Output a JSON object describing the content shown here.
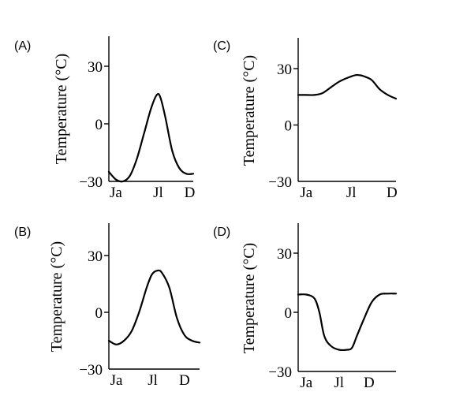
{
  "chart_data": [
    {
      "panel": "(A)",
      "type": "line",
      "xlabel": "",
      "ylabel": "Temperature (°C)",
      "ylim": [
        -30,
        45
      ],
      "xlim": [
        0,
        12
      ],
      "x_ticks": [
        1,
        7,
        11.5
      ],
      "x_tick_labels": [
        "Ja",
        "Jl",
        "D"
      ],
      "y_ticks": [
        30,
        0,
        -30
      ],
      "y_tick_labels": [
        "30",
        "0",
        "−30"
      ],
      "series": [
        {
          "x": [
            0,
            1,
            2,
            3,
            4,
            5,
            6,
            6.8,
            7.3,
            8,
            9,
            10,
            11,
            12
          ],
          "y": [
            -25,
            -29,
            -30,
            -27,
            -18,
            -5,
            8,
            15,
            14,
            4,
            -14,
            -23,
            -26,
            -26
          ]
        }
      ]
    },
    {
      "panel": "(C)",
      "type": "line",
      "xlabel": "",
      "ylabel": "Temperature (°C)",
      "ylim": [
        -30,
        45
      ],
      "xlim": [
        0,
        12
      ],
      "x_ticks": [
        1,
        6.5,
        11.5
      ],
      "x_tick_labels": [
        "Ja",
        "Jl",
        "D"
      ],
      "y_ticks": [
        30,
        0,
        -30
      ],
      "y_tick_labels": [
        "30",
        "0",
        "−30"
      ],
      "series": [
        {
          "x": [
            0,
            1,
            2,
            3,
            4,
            5,
            6,
            7,
            7.5,
            8,
            9,
            10,
            11,
            12
          ],
          "y": [
            16,
            16,
            16,
            17,
            20,
            23,
            25,
            26.5,
            26.5,
            26,
            24,
            19,
            16,
            14
          ]
        }
      ]
    },
    {
      "panel": "(B)",
      "type": "line",
      "xlabel": "",
      "ylabel": "Temperature (°C)",
      "ylim": [
        -30,
        45
      ],
      "xlim": [
        0,
        12
      ],
      "x_ticks": [
        1,
        5.8,
        10
      ],
      "x_tick_labels": [
        "Ja",
        "Jl",
        "D"
      ],
      "y_ticks": [
        30,
        0,
        -30
      ],
      "y_tick_labels": [
        "30",
        "0",
        "−30"
      ],
      "series": [
        {
          "x": [
            0,
            1,
            2,
            3,
            4,
            5,
            5.7,
            6.4,
            7,
            8,
            9,
            10,
            11,
            12
          ],
          "y": [
            -15,
            -17,
            -15,
            -10,
            0,
            13,
            20,
            22,
            21,
            13,
            -3,
            -12,
            -15,
            -16
          ]
        }
      ]
    },
    {
      "panel": "(D)",
      "type": "line",
      "xlabel": "",
      "ylabel": "Temperature (°C)",
      "ylim": [
        -30,
        45
      ],
      "xlim": [
        0,
        12
      ],
      "x_ticks": [
        1,
        5,
        8.7
      ],
      "x_tick_labels": [
        "Ja",
        "Jl",
        "D"
      ],
      "y_ticks": [
        30,
        0,
        -30
      ],
      "y_tick_labels": [
        "30",
        "0",
        "−30"
      ],
      "series": [
        {
          "x": [
            0,
            1,
            2,
            2.6,
            3.2,
            4,
            5,
            6,
            6.6,
            7.2,
            8,
            9,
            10,
            11,
            12
          ],
          "y": [
            9,
            9,
            7,
            0,
            -12,
            -17,
            -19,
            -19,
            -18,
            -12,
            -4,
            5,
            9,
            9.5,
            9.5
          ]
        }
      ]
    }
  ]
}
